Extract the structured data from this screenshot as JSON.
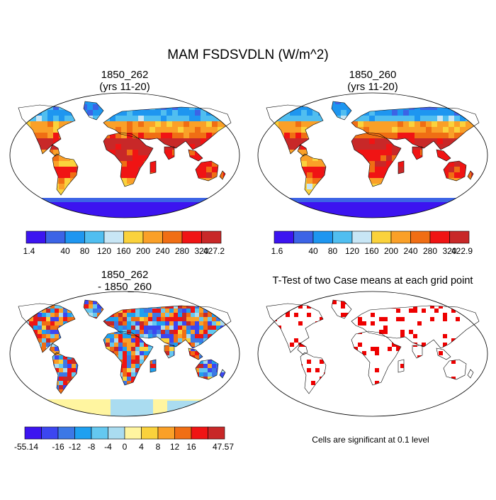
{
  "title": "MAM FSDSVDLN (W/m^2)",
  "panels": [
    {
      "id": "p1",
      "line1": "1850_262",
      "line2": "(yrs 11-20)"
    },
    {
      "id": "p2",
      "line1": "1850_260",
      "line2": "(yrs 11-20)"
    },
    {
      "id": "p3",
      "line1": "1850_262",
      "line2": "- 1850_260"
    },
    {
      "id": "p4",
      "line1": "T-Test of two Case means at each grid point",
      "line2": ""
    }
  ],
  "footnote": "Cells are significant at 0.1 level",
  "chart_data": [
    {
      "type": "heatmap",
      "title": "1850_262 (yrs 11-20)",
      "colorbar": {
        "labels": [
          "1.4",
          "40",
          "80",
          "120",
          "160",
          "200",
          "240",
          "280",
          "320",
          "427.2"
        ],
        "colors": [
          "#3c14f0",
          "#3c64e6",
          "#1e96f0",
          "#50bef0",
          "#c8e6f5",
          "#fad23c",
          "#faa028",
          "#f06e14",
          "#f01414",
          "#c82828"
        ]
      }
    },
    {
      "type": "heatmap",
      "title": "1850_260 (yrs 11-20)",
      "colorbar": {
        "labels": [
          "1.6",
          "40",
          "80",
          "120",
          "160",
          "200",
          "240",
          "280",
          "320",
          "422.9"
        ],
        "colors": [
          "#3c14f0",
          "#3c64e6",
          "#1e96f0",
          "#50bef0",
          "#c8e6f5",
          "#fad23c",
          "#faa028",
          "#f06e14",
          "#f01414",
          "#c82828"
        ]
      }
    },
    {
      "type": "heatmap",
      "title": "1850_262 - 1850_260",
      "colorbar": {
        "labels": [
          "-55.14",
          "-16",
          "-12",
          "-8",
          "-4",
          "0",
          "4",
          "8",
          "12",
          "16",
          "47.57"
        ],
        "colors": [
          "#3c14f0",
          "#3c46f0",
          "#3c78e6",
          "#1ea0f0",
          "#64c8f0",
          "#aadcf0",
          "#fff5a0",
          "#fad23c",
          "#faa028",
          "#f06e14",
          "#f01414",
          "#c82828"
        ]
      }
    },
    {
      "type": "heatmap",
      "title": "T-Test of two Case means at each grid point",
      "significant_color": "#ee0000"
    }
  ]
}
